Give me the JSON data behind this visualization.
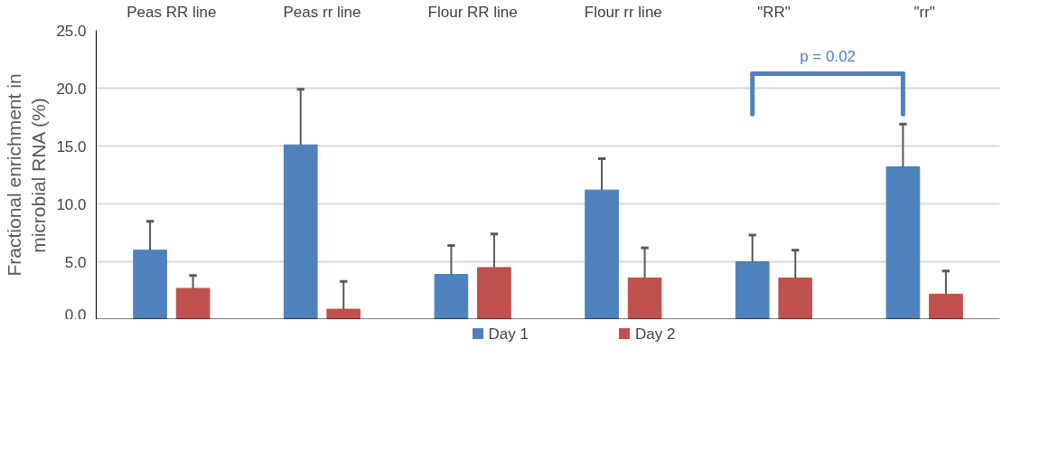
{
  "chart_data": {
    "type": "bar",
    "ylabel": "Fractional enrichment in\nmicrobial RNA (%)",
    "categories": [
      "Peas RR line",
      "Peas rr line",
      "Flour RR line",
      "Flour rr line",
      "\"RR\"",
      "\"rr\""
    ],
    "series": [
      {
        "name": "Day 1",
        "color": "#4f81bd",
        "values": [
          6.0,
          15.1,
          3.9,
          11.2,
          5.0,
          13.2
        ],
        "errors": [
          [
            6.0,
            8.5
          ],
          [
            15.1,
            19.9
          ],
          [
            3.9,
            6.4
          ],
          [
            11.2,
            13.9
          ],
          [
            5.0,
            7.3
          ],
          [
            13.2,
            16.9
          ]
        ]
      },
      {
        "name": "Day 2",
        "color": "#c0504d",
        "values": [
          2.7,
          0.9,
          4.5,
          3.6,
          3.6,
          2.2
        ],
        "errors": [
          [
            2.7,
            3.8
          ],
          [
            0.9,
            3.3
          ],
          [
            4.5,
            7.4
          ],
          [
            3.6,
            6.2
          ],
          [
            3.6,
            6.0
          ],
          [
            2.2,
            4.2
          ]
        ]
      }
    ],
    "ylim": [
      0,
      25
    ],
    "yticks": [
      {
        "value": 0,
        "label": "0.0"
      },
      {
        "value": 5,
        "label": "5.0"
      },
      {
        "value": 10,
        "label": "10.0"
      },
      {
        "value": 15,
        "label": "15.0"
      },
      {
        "value": 20,
        "label": "20.0"
      },
      {
        "value": 25,
        "label": "25.0"
      }
    ],
    "grid": "y",
    "legend": "bottom",
    "annotations": [
      "p = 0.02"
    ]
  }
}
